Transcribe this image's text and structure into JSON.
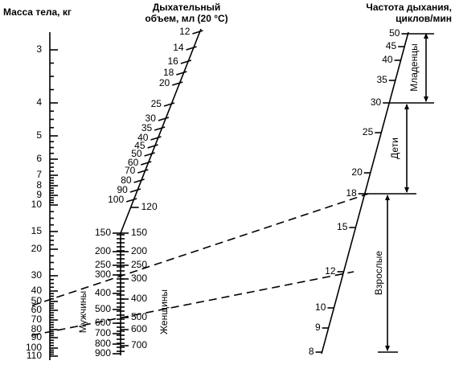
{
  "body_mass": {
    "title": "Масса тела, кг",
    "ticks": [
      3,
      4,
      5,
      6,
      7,
      8,
      9,
      10,
      15,
      20,
      30,
      40,
      50,
      60,
      70,
      80,
      90,
      100,
      110
    ]
  },
  "tidal_volume": {
    "title_lines": [
      "Дыхательный",
      "объем, мл (20 °C)"
    ],
    "upper_ticks": [
      12,
      14,
      16,
      18,
      20,
      25,
      30,
      35,
      40,
      45,
      50,
      60,
      70,
      80,
      90,
      100
    ],
    "men_ticks": [
      150,
      200,
      250,
      300,
      400,
      500,
      600,
      700,
      800,
      900
    ],
    "women_ticks": [
      120,
      150,
      200,
      250,
      300,
      400,
      500,
      600,
      700
    ],
    "men_label": "Мужчины",
    "women_label": "Женщины"
  },
  "respiratory_rate": {
    "title_lines": [
      "Частота дыхания,",
      "циклов/мин"
    ],
    "ticks": [
      50,
      45,
      40,
      35,
      30,
      25,
      20,
      18,
      15,
      12,
      10,
      9,
      8
    ],
    "groups": [
      "Младенцы",
      "Дети",
      "Взрослые"
    ]
  }
}
